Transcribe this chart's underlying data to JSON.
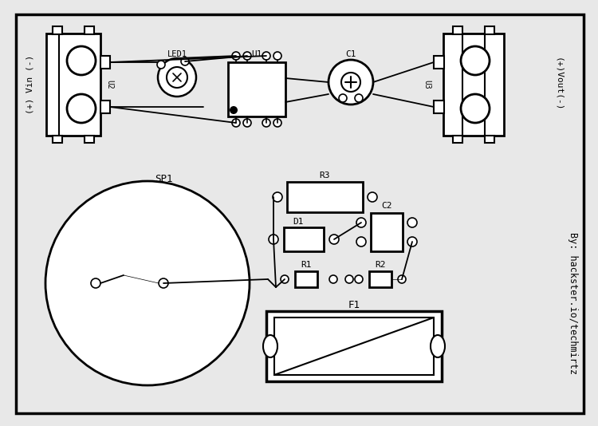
{
  "bg_color": "#e8e8e8",
  "board_bg": "#ffffff",
  "line_color": "#000000",
  "credit": "By: hackster.io/techmirtz",
  "vin_label": "(+) Vin (-)",
  "vout_label": "(+)Vout(-)",
  "u2_label": "U2",
  "u1_label": "U1",
  "u3_label": "U3",
  "led1_label": "LED1",
  "c1_label": "C1",
  "sp1_label": "SP1",
  "r3_label": "R3",
  "d1_label": "D1",
  "c2_label": "C2",
  "r1_label": "R1",
  "r2_label": "R2",
  "f1_label": "F1"
}
